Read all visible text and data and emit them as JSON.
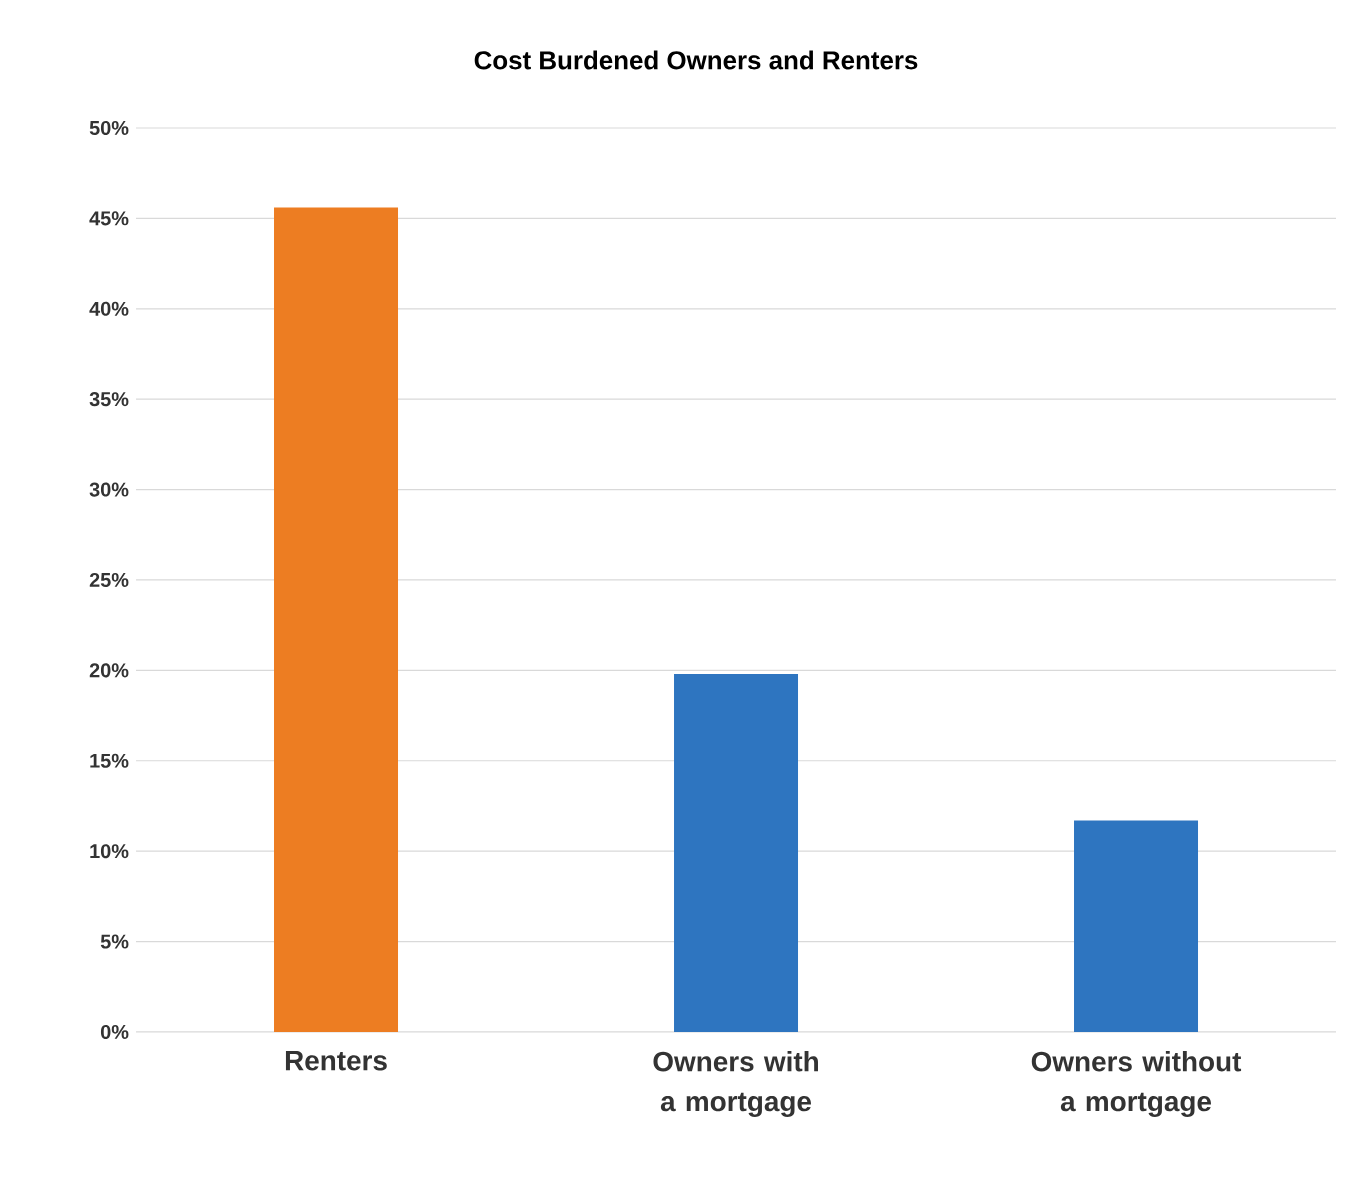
{
  "chart_data": {
    "type": "bar",
    "title": "Cost Burdened Owners and Renters",
    "categories": [
      "Renters",
      "Owners with a mortgage",
      "Owners without a mortgage"
    ],
    "values": [
      45.6,
      19.8,
      11.7
    ],
    "colors": [
      "#ed7d22",
      "#2e75c0",
      "#2e75c0"
    ],
    "ylim": [
      0,
      50
    ],
    "yticks": [
      {
        "value": 0,
        "label": "0%"
      },
      {
        "value": 5,
        "label": "5%"
      },
      {
        "value": 10,
        "label": "10%"
      },
      {
        "value": 15,
        "label": "15%"
      },
      {
        "value": 20,
        "label": "20%"
      },
      {
        "value": 25,
        "label": "25%"
      },
      {
        "value": 30,
        "label": "30%"
      },
      {
        "value": 35,
        "label": "35%"
      },
      {
        "value": 40,
        "label": "40%"
      },
      {
        "value": 45,
        "label": "45%"
      },
      {
        "value": 50,
        "label": "50%"
      }
    ],
    "grid": "y"
  }
}
